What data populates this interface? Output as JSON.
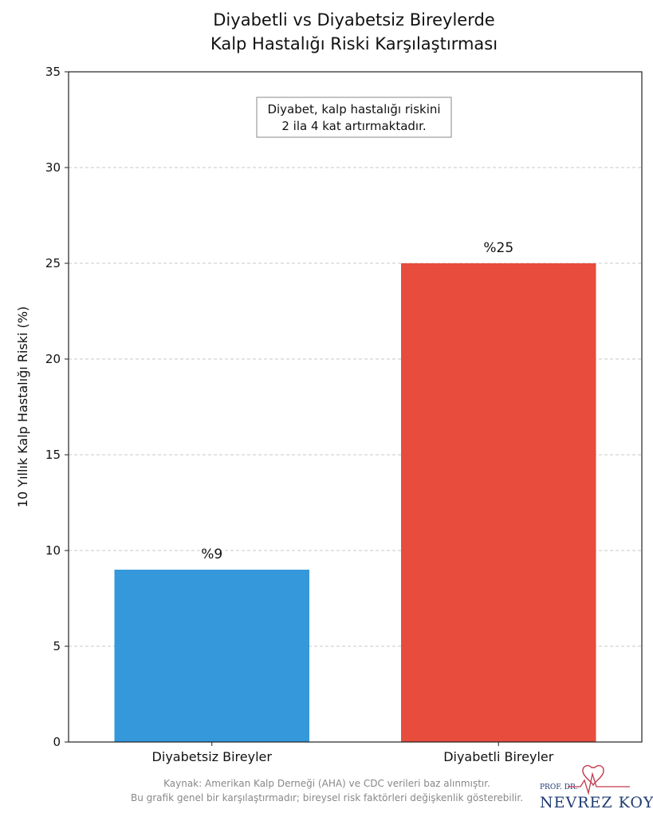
{
  "chart_data": {
    "type": "bar",
    "title_line1": "Diyabetli vs Diyabetsiz Bireylerde",
    "title_line2": "Kalp Hastalığı Riski Karşılaştırması",
    "ylabel": "10 Yıllık Kalp Hastalığı Riski (%)",
    "xlabel": "",
    "ylim": [
      0,
      35
    ],
    "yticks": [
      0,
      5,
      10,
      15,
      20,
      25,
      30,
      35
    ],
    "grid": true,
    "categories": [
      "Diyabetsiz Bireyler",
      "Diyabetli Bireyler"
    ],
    "values": [
      9,
      25
    ],
    "bar_labels": [
      "%9",
      "%25"
    ],
    "colors": [
      "#3498db",
      "#e74c3c"
    ],
    "annotation_line1": "Diyabet, kalp hastalığı riskini",
    "annotation_line2": "2 ila 4 kat artırmaktadır."
  },
  "source_line1": "Kaynak: Amerikan Kalp Derneği (AHA) ve CDC verileri baz alınmıştır.",
  "source_line2": "Bu grafik genel bir karşılaştırmadır; bireysel risk faktörleri değişkenlik gösterebilir.",
  "logo": {
    "prefix": "PROF. DR.",
    "name": "NEVREZ KOYLAN"
  }
}
